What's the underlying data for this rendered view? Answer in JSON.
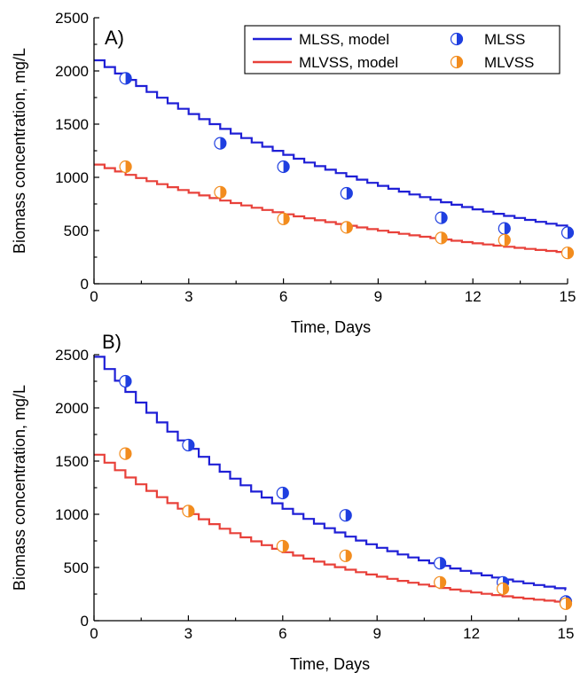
{
  "colors": {
    "mlss": "#1f1fd6",
    "mlvss": "#e8413a",
    "mlss_marker": "#1f3fe0",
    "mlvss_marker": "#f28c1e",
    "axis": "#000000"
  },
  "legend": {
    "items": [
      {
        "label": "MLSS, model",
        "kind": "line",
        "color_key": "mlss"
      },
      {
        "label": "MLVSS, model",
        "kind": "line",
        "color_key": "mlvss"
      },
      {
        "label": "MLSS",
        "kind": "marker",
        "color_key": "mlss_marker"
      },
      {
        "label": "MLVSS",
        "kind": "marker",
        "color_key": "mlvss_marker"
      }
    ]
  },
  "chart_data": [
    {
      "type": "line",
      "panel_label": "A)",
      "xlabel": "Time, Days",
      "ylabel": "Biomass concentration, mg/L",
      "xlim": [
        0,
        15
      ],
      "ylim": [
        0,
        2500
      ],
      "xticks": [
        0,
        3,
        6,
        9,
        12,
        15
      ],
      "yticks": [
        0,
        500,
        1000,
        1500,
        2000,
        2500
      ],
      "grid": false,
      "legend_position": "top-right",
      "series": [
        {
          "name": "MLSS, model",
          "kind": "step-line",
          "color_key": "mlss",
          "y0": 2100,
          "y_end": 530
        },
        {
          "name": "MLVSS, model",
          "kind": "step-line",
          "color_key": "mlvss",
          "y0": 1120,
          "y_end": 290
        },
        {
          "name": "MLSS",
          "kind": "marker",
          "color_key": "mlss_marker",
          "x": [
            1,
            4,
            6,
            8,
            11,
            13,
            15
          ],
          "y": [
            1930,
            1320,
            1100,
            850,
            620,
            520,
            480
          ]
        },
        {
          "name": "MLVSS",
          "kind": "marker",
          "color_key": "mlvss_marker",
          "x": [
            1,
            4,
            6,
            8,
            11,
            13,
            15
          ],
          "y": [
            1100,
            860,
            610,
            530,
            430,
            410,
            290
          ]
        }
      ]
    },
    {
      "type": "line",
      "panel_label": "B)",
      "xlabel": "Time, Days",
      "ylabel": "Biomass concentration, mg/L",
      "xlim": [
        0,
        15
      ],
      "ylim": [
        0,
        2500
      ],
      "xticks": [
        0,
        3,
        6,
        9,
        12,
        15
      ],
      "yticks": [
        0,
        500,
        1000,
        1500,
        2000,
        2500
      ],
      "grid": false,
      "series": [
        {
          "name": "MLSS, model",
          "kind": "step-line",
          "color_key": "mlss",
          "y0": 2480,
          "y_end": 290
        },
        {
          "name": "MLVSS, model",
          "kind": "step-line",
          "color_key": "mlvss",
          "y0": 1560,
          "y_end": 170
        },
        {
          "name": "MLSS",
          "kind": "marker",
          "color_key": "mlss_marker",
          "x": [
            1,
            3,
            6,
            8,
            11,
            13,
            15
          ],
          "y": [
            2250,
            1650,
            1200,
            990,
            540,
            360,
            180
          ]
        },
        {
          "name": "MLVSS",
          "kind": "marker",
          "color_key": "mlvss_marker",
          "x": [
            1,
            3,
            6,
            8,
            11,
            13,
            15
          ],
          "y": [
            1570,
            1030,
            700,
            610,
            360,
            300,
            160
          ]
        }
      ]
    }
  ]
}
